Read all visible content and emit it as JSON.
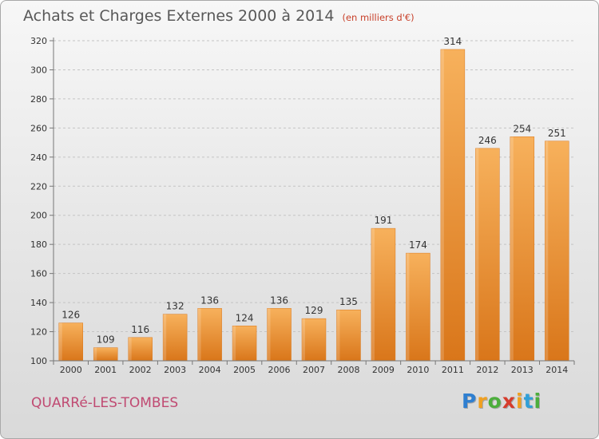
{
  "header": {
    "title": "Achats et Charges Externes 2000 à 2014",
    "subtitle": "(en milliers d'€)"
  },
  "footer": {
    "commune": "QUARRé-LES-TOMBES",
    "logo_letters": [
      {
        "ch": "P",
        "color": "#2f7fd0"
      },
      {
        "ch": "r",
        "color": "#f0a020"
      },
      {
        "ch": "o",
        "color": "#4cae3c"
      },
      {
        "ch": "x",
        "color": "#d63c2c"
      },
      {
        "ch": "i",
        "color": "#f0a020"
      },
      {
        "ch": "t",
        "color": "#2f9fd8"
      },
      {
        "ch": "i",
        "color": "#4cae3c"
      }
    ]
  },
  "chart_data": {
    "type": "bar",
    "title": "Achats et Charges Externes 2000 à 2014",
    "subtitle": "(en milliers d'€)",
    "categories": [
      "2000",
      "2001",
      "2002",
      "2003",
      "2004",
      "2005",
      "2006",
      "2007",
      "2008",
      "2009",
      "2010",
      "2011",
      "2012",
      "2013",
      "2014"
    ],
    "values": [
      126,
      109,
      116,
      132,
      136,
      124,
      136,
      129,
      135,
      191,
      174,
      314,
      246,
      254,
      251
    ],
    "ylim": [
      100,
      320
    ],
    "yticks": [
      100,
      120,
      140,
      160,
      180,
      200,
      220,
      240,
      260,
      280,
      300,
      320
    ],
    "grid": true,
    "bar_color": "#f0962e",
    "bar_color_light": "#f7b15c",
    "bar_color_dark": "#d9761a"
  }
}
